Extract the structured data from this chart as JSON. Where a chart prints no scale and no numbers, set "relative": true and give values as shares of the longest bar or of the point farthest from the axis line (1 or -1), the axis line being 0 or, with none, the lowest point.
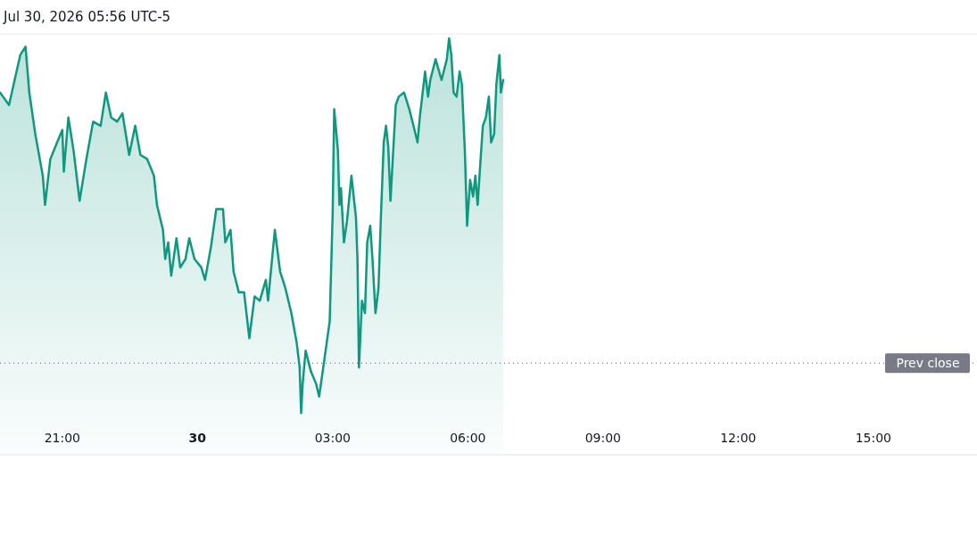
{
  "chart_data": {
    "type": "area",
    "relative": true,
    "annotations": [
      "Jul 30, 2026 05:56 UTC-5"
    ],
    "xlim": [
      "2026-07-29T19:37",
      "2026-07-30T17:18"
    ],
    "xticks": [
      {
        "value": "2026-07-29T21:00",
        "label": "21:00"
      },
      {
        "value": "2026-07-30T00:00",
        "label": "30"
      },
      {
        "value": "2026-07-30T03:00",
        "label": "03:00"
      },
      {
        "value": "2026-07-30T06:00",
        "label": "06:00"
      },
      {
        "value": "2026-07-30T09:00",
        "label": "09:00"
      },
      {
        "value": "2026-07-30T12:00",
        "label": "12:00"
      },
      {
        "value": "2026-07-30T15:00",
        "label": "15:00"
      }
    ],
    "ref_lines": [
      {
        "axis": "y",
        "value": 0.22,
        "label": "Prev close",
        "color": "#9c27b0",
        "line_style": "dotted"
      }
    ],
    "series": [
      {
        "color": "#0f9880",
        "x": [
          "2026-07-29T19:37",
          "2026-07-29T19:49",
          "2026-07-29T20:04",
          "2026-07-29T20:11",
          "2026-07-29T20:16",
          "2026-07-29T20:24",
          "2026-07-29T20:34",
          "2026-07-29T20:37",
          "2026-07-29T20:44",
          "2026-07-29T20:53",
          "2026-07-29T21:00",
          "2026-07-29T21:02",
          "2026-07-29T21:08",
          "2026-07-29T21:15",
          "2026-07-29T21:23",
          "2026-07-29T21:32",
          "2026-07-29T21:41",
          "2026-07-29T21:51",
          "2026-07-29T21:58",
          "2026-07-29T22:05",
          "2026-07-29T22:13",
          "2026-07-29T22:20",
          "2026-07-29T22:29",
          "2026-07-29T22:37",
          "2026-07-29T22:44",
          "2026-07-29T22:53",
          "2026-07-29T23:02",
          "2026-07-29T23:06",
          "2026-07-29T23:14",
          "2026-07-29T23:17",
          "2026-07-29T23:21",
          "2026-07-29T23:25",
          "2026-07-29T23:32",
          "2026-07-29T23:37",
          "2026-07-29T23:44",
          "2026-07-29T23:49",
          "2026-07-29T23:56",
          "2026-07-30T00:05",
          "2026-07-30T00:10",
          "2026-07-30T00:18",
          "2026-07-30T00:25",
          "2026-07-30T00:34",
          "2026-07-30T00:37",
          "2026-07-30T00:44",
          "2026-07-30T00:48",
          "2026-07-30T00:55",
          "2026-07-30T01:02",
          "2026-07-30T01:09",
          "2026-07-30T01:16",
          "2026-07-30T01:23",
          "2026-07-30T01:31",
          "2026-07-30T01:34",
          "2026-07-30T01:43",
          "2026-07-30T01:50",
          "2026-07-30T01:57",
          "2026-07-30T02:05",
          "2026-07-30T02:12",
          "2026-07-30T02:16",
          "2026-07-30T02:18",
          "2026-07-30T02:20",
          "2026-07-30T02:24",
          "2026-07-30T02:31",
          "2026-07-30T02:38",
          "2026-07-30T02:42",
          "2026-07-30T02:49",
          "2026-07-30T02:56",
          "2026-07-30T03:00",
          "2026-07-30T03:02",
          "2026-07-30T03:07",
          "2026-07-30T03:09",
          "2026-07-30T03:11",
          "2026-07-30T03:15",
          "2026-07-30T03:19",
          "2026-07-30T03:25",
          "2026-07-30T03:31",
          "2026-07-30T03:33",
          "2026-07-30T03:35",
          "2026-07-30T03:39",
          "2026-07-30T03:43",
          "2026-07-30T03:46",
          "2026-07-30T03:50",
          "2026-07-30T03:53",
          "2026-07-30T03:57",
          "2026-07-30T04:01",
          "2026-07-30T04:04",
          "2026-07-30T04:08",
          "2026-07-30T04:11",
          "2026-07-30T04:14",
          "2026-07-30T04:17",
          "2026-07-30T04:20",
          "2026-07-30T04:24",
          "2026-07-30T04:28",
          "2026-07-30T04:35",
          "2026-07-30T04:42",
          "2026-07-30T04:49",
          "2026-07-30T04:53",
          "2026-07-30T04:56",
          "2026-07-30T05:03",
          "2026-07-30T05:07",
          "2026-07-30T05:10",
          "2026-07-30T05:17",
          "2026-07-30T05:25",
          "2026-07-30T05:32",
          "2026-07-30T05:35",
          "2026-07-30T05:38",
          "2026-07-30T05:41",
          "2026-07-30T05:45",
          "2026-07-30T05:49",
          "2026-07-30T05:52",
          "2026-07-30T05:56",
          "2026-07-30T05:59",
          "2026-07-30T06:03",
          "2026-07-30T06:07",
          "2026-07-30T06:10",
          "2026-07-30T06:13",
          "2026-07-30T06:17",
          "2026-07-30T06:20",
          "2026-07-30T06:24",
          "2026-07-30T06:28",
          "2026-07-30T06:31",
          "2026-07-30T06:35",
          "2026-07-30T06:38",
          "2026-07-30T06:42",
          "2026-07-30T06:44",
          "2026-07-30T06:47"
        ],
        "values": [
          0.87,
          0.84,
          0.96,
          0.98,
          0.87,
          0.77,
          0.67,
          0.6,
          0.71,
          0.75,
          0.78,
          0.68,
          0.81,
          0.73,
          0.61,
          0.71,
          0.8,
          0.79,
          0.87,
          0.81,
          0.8,
          0.82,
          0.72,
          0.79,
          0.72,
          0.71,
          0.67,
          0.6,
          0.54,
          0.47,
          0.51,
          0.43,
          0.52,
          0.45,
          0.47,
          0.52,
          0.47,
          0.45,
          0.42,
          0.5,
          0.59,
          0.59,
          0.51,
          0.54,
          0.44,
          0.39,
          0.39,
          0.28,
          0.38,
          0.37,
          0.42,
          0.37,
          0.54,
          0.44,
          0.4,
          0.34,
          0.27,
          0.21,
          0.1,
          0.17,
          0.25,
          0.2,
          0.17,
          0.14,
          0.23,
          0.32,
          0.58,
          0.83,
          0.73,
          0.6,
          0.64,
          0.51,
          0.56,
          0.67,
          0.57,
          0.47,
          0.21,
          0.37,
          0.34,
          0.51,
          0.55,
          0.47,
          0.34,
          0.4,
          0.56,
          0.75,
          0.79,
          0.74,
          0.61,
          0.71,
          0.84,
          0.86,
          0.87,
          0.83,
          0.78,
          0.75,
          0.81,
          0.92,
          0.86,
          0.9,
          0.95,
          0.9,
          0.95,
          1,
          0.96,
          0.87,
          0.86,
          0.92,
          0.89,
          0.73,
          0.55,
          0.66,
          0.62,
          0.67,
          0.6,
          0.71,
          0.79,
          0.81,
          0.86,
          0.75,
          0.77,
          0.89,
          0.96,
          0.87,
          0.9
        ]
      }
    ]
  }
}
